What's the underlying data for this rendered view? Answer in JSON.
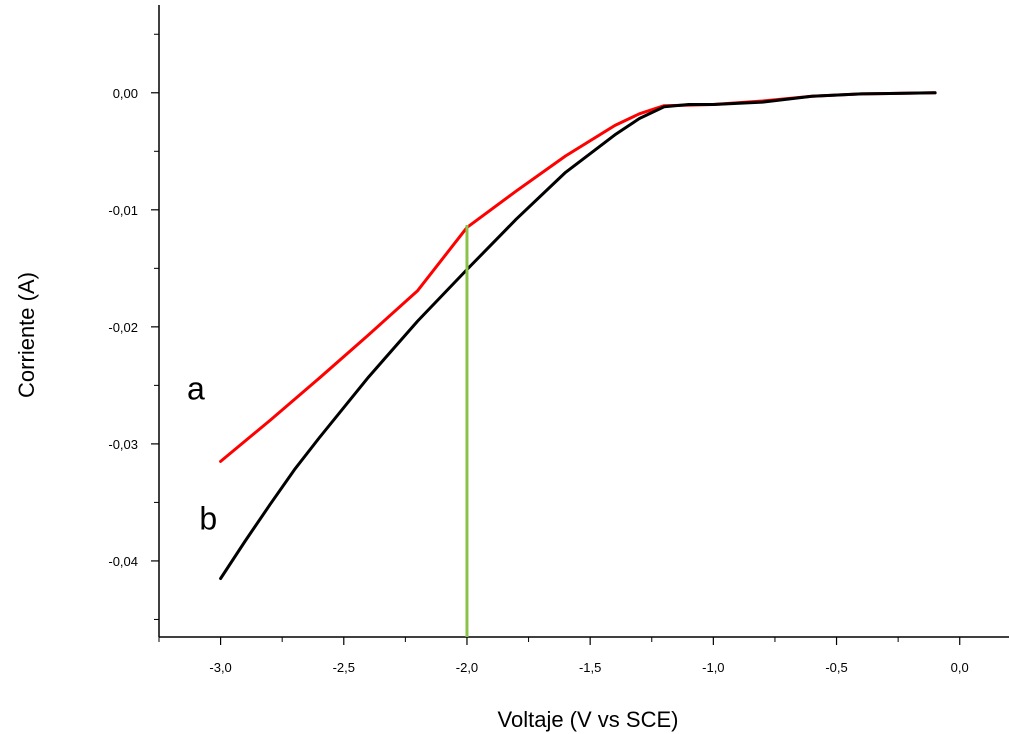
{
  "chart_data": {
    "type": "line",
    "xlabel": "Voltaje (V vs SCE)",
    "ylabel": "Corriente (A)",
    "xlim": [
      -3.25,
      0.2
    ],
    "ylim": [
      -0.0465,
      0.0075
    ],
    "x_ticks": [
      {
        "value": -3.0,
        "label": "-3,0"
      },
      {
        "value": -2.5,
        "label": "-2,5"
      },
      {
        "value": -2.0,
        "label": "-2,0"
      },
      {
        "value": -1.5,
        "label": "-1,5"
      },
      {
        "value": -1.0,
        "label": "-1,0"
      },
      {
        "value": -0.5,
        "label": "-0,5"
      },
      {
        "value": 0.0,
        "label": "0,0"
      }
    ],
    "y_ticks": [
      {
        "value": 0.0,
        "label": "0,00"
      },
      {
        "value": -0.01,
        "label": "-0,01"
      },
      {
        "value": -0.02,
        "label": "-0,02"
      },
      {
        "value": -0.03,
        "label": "-0,03"
      },
      {
        "value": -0.04,
        "label": "-0,04"
      }
    ],
    "grid": false,
    "series": [
      {
        "name": "a",
        "color": "#ff0000",
        "x": [
          -3.0,
          -2.8,
          -2.6,
          -2.4,
          -2.2,
          -2.0,
          -1.8,
          -1.6,
          -1.4,
          -1.3,
          -1.2,
          -1.0,
          -0.8,
          -0.6,
          -0.4,
          -0.1
        ],
        "y": [
          -0.0315,
          -0.028,
          -0.0244,
          -0.0207,
          -0.0169,
          -0.0115,
          -0.0084,
          -0.0054,
          -0.0028,
          -0.0018,
          -0.0011,
          -0.001,
          -0.0007,
          -0.0003,
          -0.0001,
          0.0
        ]
      },
      {
        "name": "b",
        "color": "#000000",
        "x": [
          -3.0,
          -2.9,
          -2.8,
          -2.7,
          -2.6,
          -2.4,
          -2.2,
          -2.0,
          -1.8,
          -1.6,
          -1.4,
          -1.3,
          -1.2,
          -1.1,
          -1.0,
          -0.8,
          -0.6,
          -0.4,
          -0.1
        ],
        "y": [
          -0.0415,
          -0.0383,
          -0.0352,
          -0.0322,
          -0.0295,
          -0.0243,
          -0.0195,
          -0.0151,
          -0.0108,
          -0.0068,
          -0.0036,
          -0.0022,
          -0.0012,
          -0.001,
          -0.001,
          -0.0008,
          -0.0003,
          -0.0001,
          0.0
        ]
      }
    ],
    "annotations": [
      {
        "text": "a",
        "x": -3.1,
        "y": -0.0262
      },
      {
        "text": "b",
        "x": -3.05,
        "y": -0.0373
      }
    ],
    "vertical_line": {
      "x": -2.0,
      "y_top": -0.0113,
      "color": "#8bc34a"
    }
  }
}
